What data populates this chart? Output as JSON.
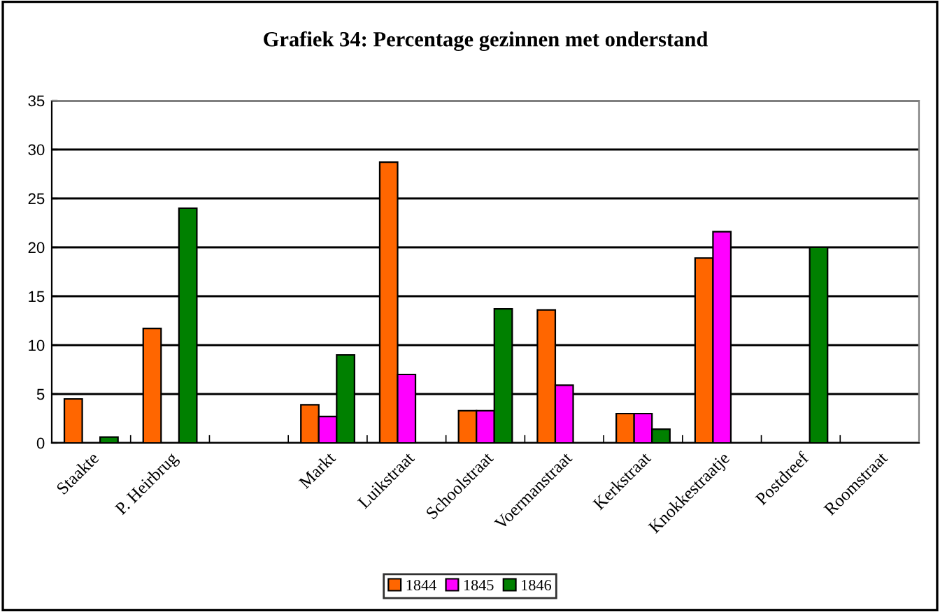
{
  "chart_data": {
    "type": "bar",
    "title": "Grafiek 34: Percentage gezinnen met onderstand",
    "categories": [
      "Staakte",
      "P. Heirbrug",
      null,
      "Markt",
      "Luikstraat",
      "Schoolstraat",
      "Voermanstraat",
      "Kerkstraat",
      "Knokkestraatje",
      "Postdreef",
      "Roomstraat"
    ],
    "series": [
      {
        "name": "1844",
        "color": "#ff6600",
        "values": [
          4.5,
          11.7,
          null,
          3.9,
          28.7,
          3.3,
          13.6,
          3.0,
          18.9,
          null,
          null
        ]
      },
      {
        "name": "1845",
        "color": "#ff00ff",
        "values": [
          null,
          null,
          null,
          2.7,
          7.0,
          3.3,
          5.9,
          3.0,
          21.6,
          null,
          null
        ]
      },
      {
        "name": "1846",
        "color": "#008000",
        "values": [
          0.6,
          24.0,
          null,
          9.0,
          null,
          13.7,
          null,
          1.4,
          null,
          20.0,
          null
        ]
      }
    ],
    "ylim": [
      0,
      35
    ],
    "yticks": [
      0,
      5,
      10,
      15,
      20,
      25,
      30,
      35
    ],
    "grid": "y",
    "legend": "bottom"
  }
}
